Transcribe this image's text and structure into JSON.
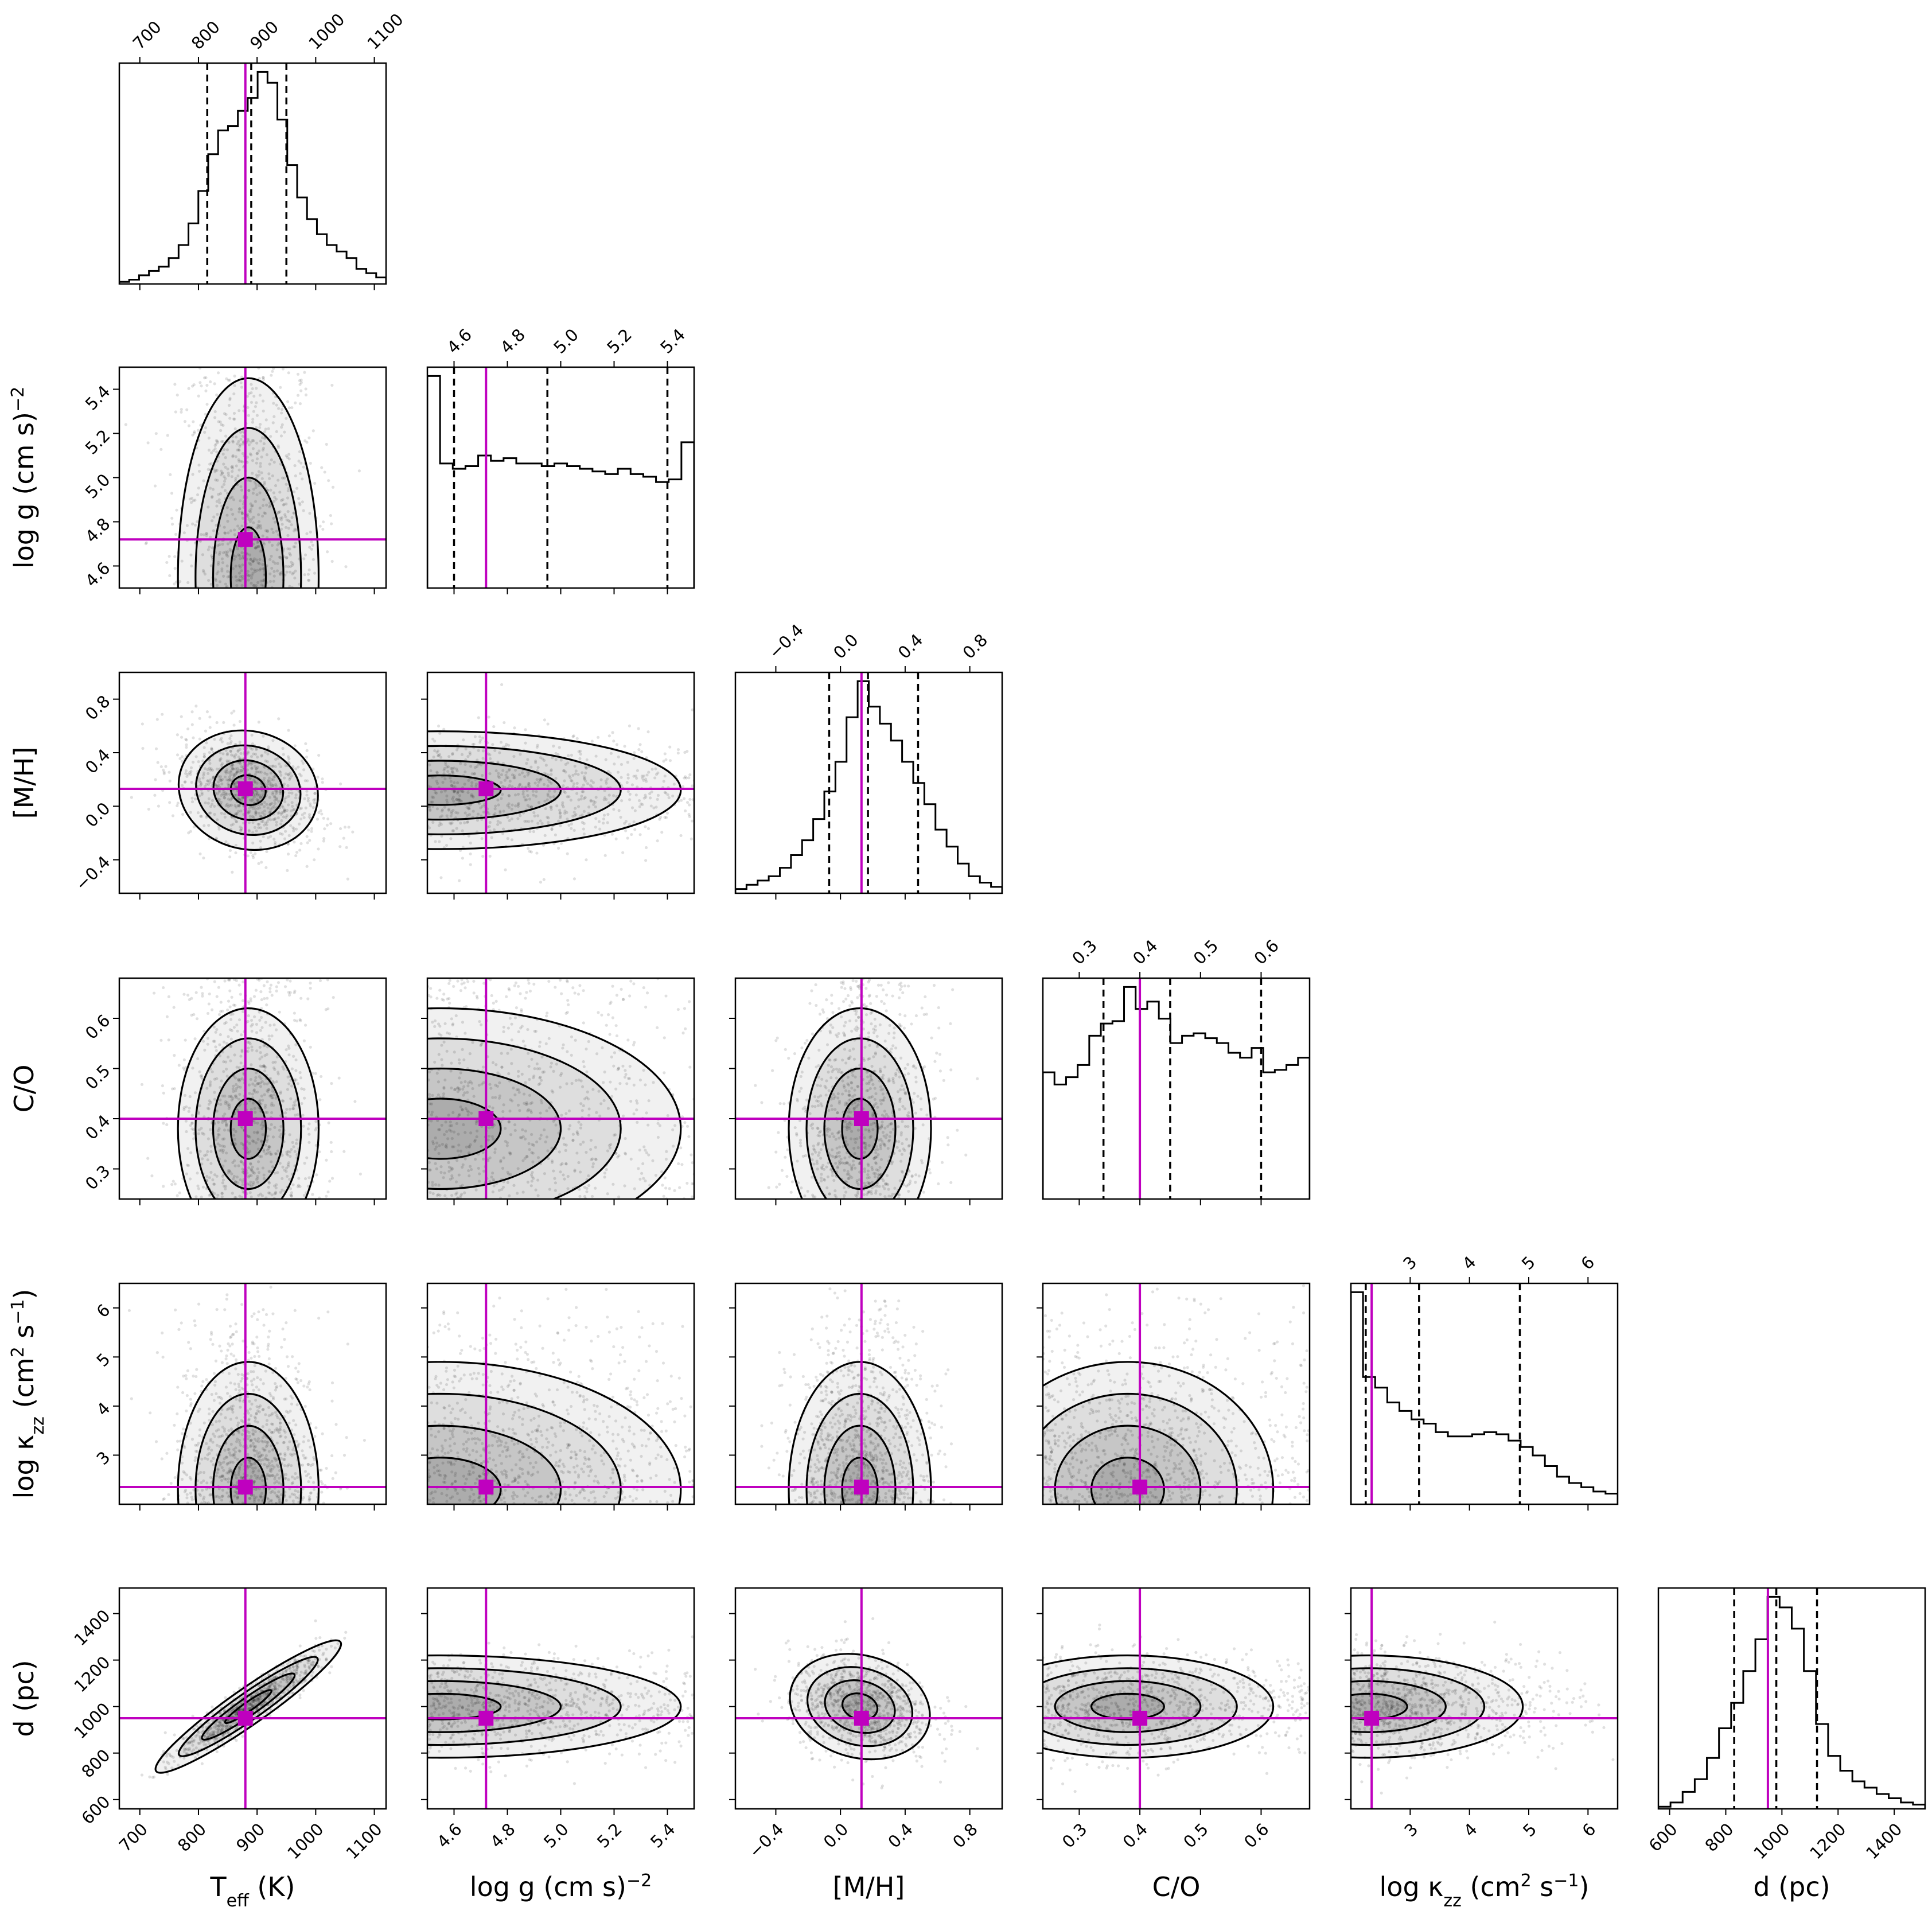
{
  "chart_data": {
    "type": "scatter",
    "subtype": "corner-plot",
    "title": "",
    "truth_color": "#BF00BF",
    "hist_color": "#000000",
    "contour_color": "#000000",
    "quantile_linestyle": "dashed",
    "parameters": [
      {
        "key": "teff",
        "label_main": "T",
        "label_sub": "eff",
        "label_tail": " (K)",
        "range": [
          665,
          1120
        ],
        "ticks": [
          700,
          800,
          900,
          1000,
          1100
        ],
        "tick_labels": [
          "700",
          "800",
          "900",
          "1000",
          "1100"
        ],
        "truth": 880,
        "quantiles": [
          815,
          890,
          950
        ],
        "hist": [
          1,
          2,
          4,
          6,
          8,
          12,
          18,
          28,
          43,
          60,
          71,
          73,
          80,
          86,
          98,
          93,
          76,
          55,
          40,
          30,
          23,
          18,
          15,
          12,
          7,
          5,
          3
        ]
      },
      {
        "key": "logg",
        "label_main": "log g (cm s",
        "label_sup": "−2",
        "label_tail": ")",
        "range": [
          4.5,
          5.5
        ],
        "ticks": [
          4.6,
          4.8,
          5.0,
          5.2,
          5.4
        ],
        "tick_labels": [
          "4.6",
          "4.8",
          "5.0",
          "5.2",
          "5.4"
        ],
        "truth": 4.72,
        "quantiles": [
          4.6,
          4.95,
          5.4
        ],
        "hist": [
          80,
          47,
          45,
          46,
          50,
          48,
          49,
          47,
          47,
          46,
          47,
          46,
          45,
          44,
          43,
          45,
          43,
          42,
          40,
          41,
          55
        ]
      },
      {
        "key": "mh",
        "label_main": "[M/H]",
        "range": [
          -0.65,
          1.0
        ],
        "ticks": [
          -0.4,
          0.0,
          0.4,
          0.8
        ],
        "tick_labels": [
          "−0.4",
          "0.0",
          "0.4",
          "0.8"
        ],
        "truth": 0.13,
        "quantiles": [
          -0.07,
          0.17,
          0.48
        ],
        "hist": [
          2,
          4,
          6,
          8,
          12,
          18,
          25,
          35,
          48,
          62,
          83,
          100,
          88,
          80,
          72,
          62,
          52,
          42,
          30,
          22,
          14,
          8,
          5,
          3
        ]
      },
      {
        "key": "co",
        "label_main": "C/O",
        "range": [
          0.24,
          0.68
        ],
        "ticks": [
          0.3,
          0.4,
          0.5,
          0.6
        ],
        "tick_labels": [
          "0.3",
          "0.4",
          "0.5",
          "0.6"
        ],
        "truth": 0.4,
        "quantiles": [
          0.34,
          0.45,
          0.6
        ],
        "hist": [
          52,
          47,
          50,
          55,
          67,
          72,
          73,
          87,
          78,
          81,
          74,
          64,
          67,
          68,
          66,
          64,
          60,
          58,
          62,
          52,
          53,
          55,
          58
        ]
      },
      {
        "key": "kzz",
        "label_main": "log κ",
        "label_sub": "zz",
        "label_tail": " (cm",
        "label_sup": "2",
        "label_tail2": " s",
        "label_sup2": "−1",
        "label_tail3": ")",
        "range": [
          2.0,
          6.5
        ],
        "ticks": [
          3,
          4,
          5,
          6
        ],
        "tick_labels": [
          "3",
          "4",
          "5",
          "6"
        ],
        "truth": 2.35,
        "quantiles": [
          2.25,
          3.15,
          4.85
        ],
        "hist": [
          100,
          60,
          55,
          48,
          44,
          40,
          38,
          34,
          32,
          32,
          33,
          34,
          33,
          30,
          27,
          23,
          18,
          13,
          10,
          8,
          6,
          5
        ]
      },
      {
        "key": "d",
        "label_main": "d (pc)",
        "range": [
          560,
          1510
        ],
        "ticks": [
          600,
          800,
          1000,
          1200,
          1400
        ],
        "tick_labels": [
          "600",
          "800",
          "1000",
          "1200",
          "1400"
        ],
        "truth": 950,
        "quantiles": [
          830,
          980,
          1125
        ],
        "hist": [
          1,
          3,
          8,
          14,
          24,
          38,
          50,
          65,
          80,
          100,
          95,
          85,
          65,
          40,
          25,
          18,
          13,
          10,
          7,
          5,
          3,
          2
        ]
      }
    ]
  }
}
